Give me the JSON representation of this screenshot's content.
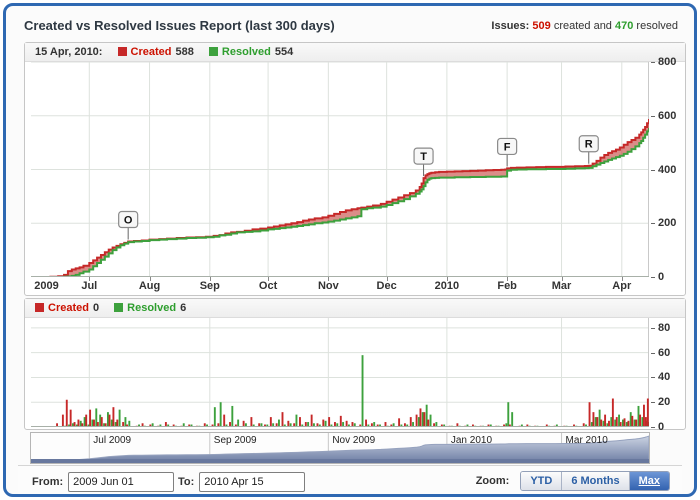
{
  "header": {
    "title": "Created vs Resolved Issues Report (last 300 days)",
    "summary_prefix": "Issues:",
    "created_count": "509",
    "summary_mid": "created and",
    "resolved_count": "470",
    "summary_suffix": "resolved"
  },
  "top_chart": {
    "legend_date": "15 Apr, 2010:",
    "created_label": "Created",
    "created_value": "588",
    "resolved_label": "Resolved",
    "resolved_value": "554"
  },
  "bottom_chart": {
    "created_label": "Created",
    "created_value": "0",
    "resolved_label": "Resolved",
    "resolved_value": "6"
  },
  "footer": {
    "from_label": "From:",
    "from_value": "2009 Jun 01",
    "to_label": "To:",
    "to_value": "2010 Apr 15",
    "zoom_label": "Zoom:",
    "buttons": [
      {
        "label": "YTD",
        "active": false
      },
      {
        "label": "6 Months",
        "active": false
      },
      {
        "label": "Max",
        "active": true
      }
    ]
  },
  "colors": {
    "created": "#C62828",
    "resolved": "#3DA13D",
    "fill_between": "rgba(190,48,40,0.55)",
    "grid": "#DDE2DD",
    "axis_line": "#A8B0A8",
    "nav_area_top": "#CBD3E2",
    "nav_area_bottom": "#6F7FA5",
    "nav_stroke": "#96A2BE",
    "nav_bar": "#68789E"
  },
  "chart_data": [
    {
      "type": "area",
      "title": "Cumulative created vs resolved issues",
      "x_unit": "days since 2009-06-01",
      "x_range": [
        0,
        318
      ],
      "ylim": [
        0,
        800
      ],
      "yticks": [
        0,
        200,
        400,
        600,
        800
      ],
      "xticks": [
        {
          "label": "2009",
          "day": 8
        },
        {
          "label": "Jul",
          "day": 30
        },
        {
          "label": "Aug",
          "day": 61
        },
        {
          "label": "Sep",
          "day": 92
        },
        {
          "label": "Oct",
          "day": 122
        },
        {
          "label": "Nov",
          "day": 153
        },
        {
          "label": "Dec",
          "day": 183
        },
        {
          "label": "2010",
          "day": 214
        },
        {
          "label": "Feb",
          "day": 245
        },
        {
          "label": "Mar",
          "day": 273
        },
        {
          "label": "Apr",
          "day": 304
        }
      ],
      "grid_days": [
        30,
        61,
        92,
        122,
        153,
        183,
        214,
        245,
        273,
        304
      ],
      "series_names": [
        "Created",
        "Resolved"
      ],
      "flags": [
        {
          "label": "O",
          "day": 50
        },
        {
          "label": "T",
          "day": 202
        },
        {
          "label": "F",
          "day": 245
        },
        {
          "label": "R",
          "day": 287
        }
      ],
      "points": [
        [
          0,
          0,
          0
        ],
        [
          10,
          1,
          0
        ],
        [
          14,
          3,
          0
        ],
        [
          17,
          8,
          1
        ],
        [
          19,
          22,
          2
        ],
        [
          21,
          28,
          4
        ],
        [
          23,
          32,
          8
        ],
        [
          25,
          36,
          14
        ],
        [
          27,
          42,
          20
        ],
        [
          30,
          52,
          28
        ],
        [
          32,
          62,
          40
        ],
        [
          34,
          72,
          52
        ],
        [
          36,
          82,
          64
        ],
        [
          38,
          92,
          76
        ],
        [
          40,
          102,
          88
        ],
        [
          42,
          110,
          100
        ],
        [
          44,
          116,
          110
        ],
        [
          46,
          122,
          118
        ],
        [
          48,
          127,
          124
        ],
        [
          50,
          132,
          130
        ],
        [
          53,
          134,
          132
        ],
        [
          57,
          136,
          134
        ],
        [
          61,
          139,
          137
        ],
        [
          66,
          141,
          139
        ],
        [
          70,
          143,
          141
        ],
        [
          75,
          145,
          143
        ],
        [
          80,
          147,
          145
        ],
        [
          85,
          148,
          146
        ],
        [
          90,
          150,
          148
        ],
        [
          94,
          153,
          150
        ],
        [
          97,
          156,
          155
        ],
        [
          100,
          162,
          157
        ],
        [
          103,
          166,
          162
        ],
        [
          106,
          168,
          166
        ],
        [
          110,
          172,
          168
        ],
        [
          114,
          177,
          170
        ],
        [
          118,
          180,
          173
        ],
        [
          122,
          184,
          177
        ],
        [
          125,
          188,
          179
        ],
        [
          128,
          192,
          182
        ],
        [
          131,
          196,
          184
        ],
        [
          134,
          200,
          187
        ],
        [
          137,
          204,
          190
        ],
        [
          140,
          210,
          193
        ],
        [
          143,
          214,
          196
        ],
        [
          146,
          218,
          200
        ],
        [
          150,
          222,
          203
        ],
        [
          153,
          228,
          206
        ],
        [
          156,
          235,
          210
        ],
        [
          159,
          242,
          214
        ],
        [
          162,
          248,
          218
        ],
        [
          165,
          252,
          222
        ],
        [
          168,
          256,
          226
        ],
        [
          170,
          258,
          252
        ],
        [
          173,
          262,
          256
        ],
        [
          176,
          266,
          258
        ],
        [
          180,
          272,
          262
        ],
        [
          183,
          280,
          268
        ],
        [
          186,
          288,
          275
        ],
        [
          189,
          296,
          282
        ],
        [
          192,
          304,
          290
        ],
        [
          195,
          312,
          300
        ],
        [
          198,
          322,
          310
        ],
        [
          200,
          335,
          318
        ],
        [
          201,
          348,
          326
        ],
        [
          202,
          368,
          338
        ],
        [
          203,
          378,
          352
        ],
        [
          204,
          383,
          362
        ],
        [
          205,
          386,
          366
        ],
        [
          206,
          388,
          368
        ],
        [
          208,
          390,
          369
        ],
        [
          210,
          391,
          370
        ],
        [
          214,
          392,
          370
        ],
        [
          218,
          393,
          371
        ],
        [
          222,
          394,
          371
        ],
        [
          226,
          395,
          372
        ],
        [
          230,
          396,
          372
        ],
        [
          234,
          397,
          373
        ],
        [
          238,
          398,
          373
        ],
        [
          242,
          399,
          374
        ],
        [
          244,
          400,
          374
        ],
        [
          245,
          404,
          396
        ],
        [
          247,
          406,
          399
        ],
        [
          250,
          407,
          400
        ],
        [
          255,
          408,
          401
        ],
        [
          260,
          409,
          401
        ],
        [
          265,
          410,
          402
        ],
        [
          270,
          410,
          402
        ],
        [
          275,
          411,
          403
        ],
        [
          280,
          412,
          404
        ],
        [
          285,
          413,
          405
        ],
        [
          287,
          414,
          406
        ],
        [
          289,
          422,
          412
        ],
        [
          291,
          432,
          418
        ],
        [
          293,
          444,
          424
        ],
        [
          295,
          454,
          430
        ],
        [
          297,
          462,
          436
        ],
        [
          299,
          468,
          441
        ],
        [
          301,
          474,
          446
        ],
        [
          303,
          482,
          451
        ],
        [
          305,
          492,
          458
        ],
        [
          307,
          502,
          466
        ],
        [
          309,
          510,
          476
        ],
        [
          311,
          518,
          486
        ],
        [
          313,
          530,
          498
        ],
        [
          314,
          538,
          506
        ],
        [
          315,
          548,
          518
        ],
        [
          316,
          558,
          530
        ],
        [
          317,
          572,
          542
        ],
        [
          318,
          588,
          554
        ]
      ]
    },
    {
      "type": "bar",
      "title": "Daily created vs resolved issues",
      "x_unit": "days since 2009-06-01",
      "x_range": [
        0,
        318
      ],
      "ylim": [
        0,
        88
      ],
      "yticks": [
        0,
        20,
        40,
        60,
        80
      ],
      "grid_days": [
        30,
        92,
        153,
        214,
        273
      ],
      "series_names": [
        "Created",
        "Resolved"
      ],
      "bars": [
        [
          14,
          3,
          0
        ],
        [
          17,
          10,
          1
        ],
        [
          19,
          22,
          2
        ],
        [
          21,
          14,
          3
        ],
        [
          23,
          4,
          2
        ],
        [
          25,
          6,
          5
        ],
        [
          27,
          3,
          8
        ],
        [
          29,
          10,
          2
        ],
        [
          31,
          14,
          6
        ],
        [
          33,
          6,
          15
        ],
        [
          35,
          4,
          10
        ],
        [
          37,
          8,
          3
        ],
        [
          39,
          3,
          12
        ],
        [
          41,
          10,
          6
        ],
        [
          43,
          16,
          4
        ],
        [
          45,
          6,
          14
        ],
        [
          48,
          4,
          8
        ],
        [
          50,
          2,
          5
        ],
        [
          55,
          1,
          2
        ],
        [
          58,
          3,
          1
        ],
        [
          62,
          2,
          3
        ],
        [
          66,
          1,
          2
        ],
        [
          70,
          4,
          2
        ],
        [
          74,
          2,
          1
        ],
        [
          78,
          1,
          3
        ],
        [
          82,
          2,
          2
        ],
        [
          86,
          1,
          1
        ],
        [
          90,
          3,
          2
        ],
        [
          94,
          2,
          16
        ],
        [
          97,
          3,
          20
        ],
        [
          100,
          10,
          2
        ],
        [
          103,
          4,
          17
        ],
        [
          106,
          2,
          6
        ],
        [
          110,
          5,
          3
        ],
        [
          114,
          8,
          2
        ],
        [
          118,
          3,
          3
        ],
        [
          121,
          2,
          2
        ],
        [
          124,
          8,
          3
        ],
        [
          127,
          3,
          6
        ],
        [
          130,
          12,
          2
        ],
        [
          133,
          5,
          3
        ],
        [
          136,
          3,
          10
        ],
        [
          139,
          8,
          2
        ],
        [
          142,
          4,
          4
        ],
        [
          145,
          10,
          3
        ],
        [
          148,
          3,
          2
        ],
        [
          151,
          6,
          5
        ],
        [
          154,
          8,
          2
        ],
        [
          157,
          4,
          3
        ],
        [
          160,
          9,
          4
        ],
        [
          163,
          5,
          2
        ],
        [
          166,
          4,
          3
        ],
        [
          170,
          2,
          58
        ],
        [
          173,
          6,
          2
        ],
        [
          176,
          3,
          4
        ],
        [
          179,
          2,
          2
        ],
        [
          183,
          4,
          1
        ],
        [
          186,
          2,
          3
        ],
        [
          190,
          7,
          2
        ],
        [
          193,
          3,
          2
        ],
        [
          196,
          8,
          4
        ],
        [
          199,
          10,
          8
        ],
        [
          201,
          15,
          12
        ],
        [
          203,
          12,
          18
        ],
        [
          205,
          6,
          10
        ],
        [
          208,
          3,
          4
        ],
        [
          212,
          2,
          2
        ],
        [
          216,
          1,
          1
        ],
        [
          220,
          3,
          1
        ],
        [
          224,
          1,
          2
        ],
        [
          228,
          2,
          1
        ],
        [
          232,
          1,
          1
        ],
        [
          236,
          2,
          2
        ],
        [
          240,
          1,
          1
        ],
        [
          244,
          2,
          3
        ],
        [
          245,
          1,
          20
        ],
        [
          247,
          2,
          12
        ],
        [
          252,
          1,
          2
        ],
        [
          256,
          2,
          1
        ],
        [
          260,
          1,
          1
        ],
        [
          266,
          2,
          1
        ],
        [
          270,
          1,
          2
        ],
        [
          275,
          1,
          1
        ],
        [
          280,
          2,
          1
        ],
        [
          285,
          3,
          2
        ],
        [
          288,
          20,
          4
        ],
        [
          290,
          12,
          8
        ],
        [
          292,
          8,
          14
        ],
        [
          294,
          6,
          5
        ],
        [
          296,
          10,
          3
        ],
        [
          298,
          5,
          8
        ],
        [
          300,
          23,
          6
        ],
        [
          302,
          8,
          10
        ],
        [
          304,
          4,
          6
        ],
        [
          306,
          7,
          4
        ],
        [
          308,
          5,
          12
        ],
        [
          310,
          9,
          6
        ],
        [
          312,
          6,
          17
        ],
        [
          314,
          10,
          8
        ],
        [
          316,
          18,
          5
        ],
        [
          317,
          8,
          4
        ],
        [
          318,
          23,
          6
        ]
      ]
    },
    {
      "type": "navigator",
      "title": "Range navigator (cumulative created)",
      "x_range": [
        0,
        318
      ],
      "labels": [
        {
          "label": "Jul 2009",
          "day": 30
        },
        {
          "label": "Sep 2009",
          "day": 92
        },
        {
          "label": "Nov 2009",
          "day": 153
        },
        {
          "label": "Jan 2010",
          "day": 214
        },
        {
          "label": "Mar 2010",
          "day": 273
        }
      ]
    }
  ]
}
